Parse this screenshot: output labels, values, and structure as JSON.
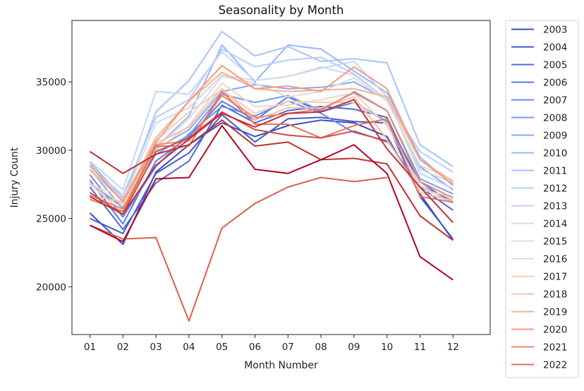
{
  "chart_data": {
    "type": "line",
    "title": "Seasonality by Month",
    "xlabel": "Month Number",
    "ylabel": "Injury Count",
    "categories": [
      "01",
      "02",
      "03",
      "04",
      "05",
      "06",
      "07",
      "08",
      "09",
      "10",
      "11",
      "12"
    ],
    "ylim": [
      16500,
      39500
    ],
    "yticks": [
      20000,
      25000,
      30000,
      35000
    ],
    "grid": false,
    "legend": "outside-right",
    "series": [
      {
        "name": "2003",
        "color": "#3b4cc0",
        "values": [
          25400,
          23100,
          28400,
          30400,
          32000,
          31000,
          31800,
          32200,
          32000,
          31000,
          26800,
          23400
        ]
      },
      {
        "name": "2004",
        "color": "#4358cb",
        "values": [
          25000,
          23900,
          28300,
          29800,
          32600,
          30600,
          32300,
          32400,
          32100,
          32000,
          26600,
          23500
        ]
      },
      {
        "name": "2005",
        "color": "#4f69d9",
        "values": [
          27300,
          24200,
          27600,
          29200,
          33300,
          32000,
          32900,
          33200,
          33000,
          32400,
          27300,
          25600
        ]
      },
      {
        "name": "2006",
        "color": "#5b7ae5",
        "values": [
          27800,
          24600,
          29200,
          31000,
          33600,
          32200,
          33900,
          32800,
          33500,
          32100,
          27700,
          26100
        ]
      },
      {
        "name": "2007",
        "color": "#688aef",
        "values": [
          28200,
          25100,
          28800,
          31200,
          33200,
          32500,
          33600,
          32700,
          31300,
          30700,
          27400,
          26300
        ]
      },
      {
        "name": "2008",
        "color": "#779af7",
        "values": [
          27600,
          25800,
          29700,
          31100,
          34100,
          33500,
          34000,
          32900,
          34300,
          32900,
          27900,
          26800
        ]
      },
      {
        "name": "2009",
        "color": "#86a9fc",
        "values": [
          28600,
          25700,
          30100,
          31500,
          34300,
          34800,
          34500,
          34600,
          35000,
          33700,
          28800,
          27100
        ]
      },
      {
        "name": "2010",
        "color": "#96b7ff",
        "values": [
          29100,
          26500,
          30200,
          32500,
          37700,
          35000,
          37700,
          37400,
          35800,
          34200,
          29500,
          27400
        ]
      },
      {
        "name": "2011",
        "color": "#a5c3fe",
        "values": [
          28900,
          26300,
          32800,
          35100,
          38700,
          36900,
          37600,
          36500,
          36700,
          36400,
          30400,
          28800
        ]
      },
      {
        "name": "2012",
        "color": "#b5cdfa",
        "values": [
          28800,
          26700,
          32400,
          33700,
          37400,
          36100,
          36600,
          36800,
          35600,
          33700,
          29900,
          28400
        ]
      },
      {
        "name": "2013",
        "color": "#c3d5f4",
        "values": [
          29200,
          27100,
          34300,
          34100,
          37200,
          35100,
          35400,
          36000,
          36500,
          33900,
          28300,
          27200
        ]
      },
      {
        "name": "2014",
        "color": "#d1dae9",
        "values": [
          28500,
          26300,
          32000,
          33100,
          35500,
          35100,
          35400,
          36100,
          35500,
          33700,
          28600,
          27600
        ]
      },
      {
        "name": "2015",
        "color": "#dddcdc",
        "values": [
          27400,
          26700,
          30200,
          32300,
          35400,
          34900,
          33900,
          34300,
          35300,
          33600,
          28900,
          27800
        ]
      },
      {
        "name": "2016",
        "color": "#e8d6cc",
        "values": [
          27500,
          25500,
          30000,
          31800,
          34900,
          33200,
          33300,
          33700,
          34200,
          31800,
          27400,
          26100
        ]
      },
      {
        "name": "2017",
        "color": "#f1cdba",
        "values": [
          27600,
          26000,
          30700,
          32800,
          34400,
          32700,
          33600,
          33500,
          33500,
          32000,
          27100,
          26600
        ]
      },
      {
        "name": "2018",
        "color": "#f6bfa6",
        "values": [
          26700,
          26200,
          30500,
          31700,
          34500,
          32200,
          33100,
          33100,
          33900,
          30800,
          26900,
          26300
        ]
      },
      {
        "name": "2019",
        "color": "#f7af91",
        "values": [
          28600,
          26300,
          30900,
          33600,
          35700,
          34500,
          34300,
          34400,
          34500,
          33900,
          29300,
          27700
        ]
      },
      {
        "name": "2020",
        "color": "#f59d7d",
        "values": [
          28900,
          26200,
          30600,
          33600,
          36200,
          34500,
          34700,
          34300,
          36100,
          34500,
          29300,
          27500
        ]
      },
      {
        "name": "2021",
        "color": "#ef8a69",
        "values": [
          26700,
          25700,
          30400,
          30700,
          34000,
          32400,
          32700,
          33000,
          34200,
          32900,
          27700,
          26500
        ]
      },
      {
        "name": "2022",
        "color": "#e67358",
        "values": [
          26400,
          25500,
          30300,
          30300,
          34300,
          31900,
          31900,
          30900,
          31800,
          32300,
          26600,
          26200
        ]
      },
      {
        "name": "",
        "color": "#dc5f4b",
        "values": [
          24500,
          23500,
          23600,
          17500,
          24300,
          26100,
          27300,
          28000,
          27700,
          28000,
          null,
          null
        ]
      },
      {
        "name": "",
        "color": "#cf4a3c",
        "values": [
          26900,
          25300,
          29900,
          30900,
          32800,
          31500,
          31100,
          30900,
          31400,
          30600,
          null,
          null
        ]
      },
      {
        "name": "",
        "color": "#bf3030",
        "values": [
          29900,
          28300,
          29700,
          30400,
          32200,
          30300,
          30600,
          29300,
          29400,
          29000,
          25200,
          23400
        ]
      },
      {
        "name": "",
        "color": "#c42f3b",
        "values": [
          26600,
          25300,
          28900,
          30800,
          32700,
          31700,
          32700,
          32800,
          33700,
          30100,
          27300,
          24700
        ]
      },
      {
        "name": "",
        "color": "#b40426",
        "values": [
          24500,
          23300,
          27900,
          28000,
          31800,
          28600,
          28300,
          29300,
          30400,
          28300,
          22200,
          20500
        ]
      }
    ]
  }
}
